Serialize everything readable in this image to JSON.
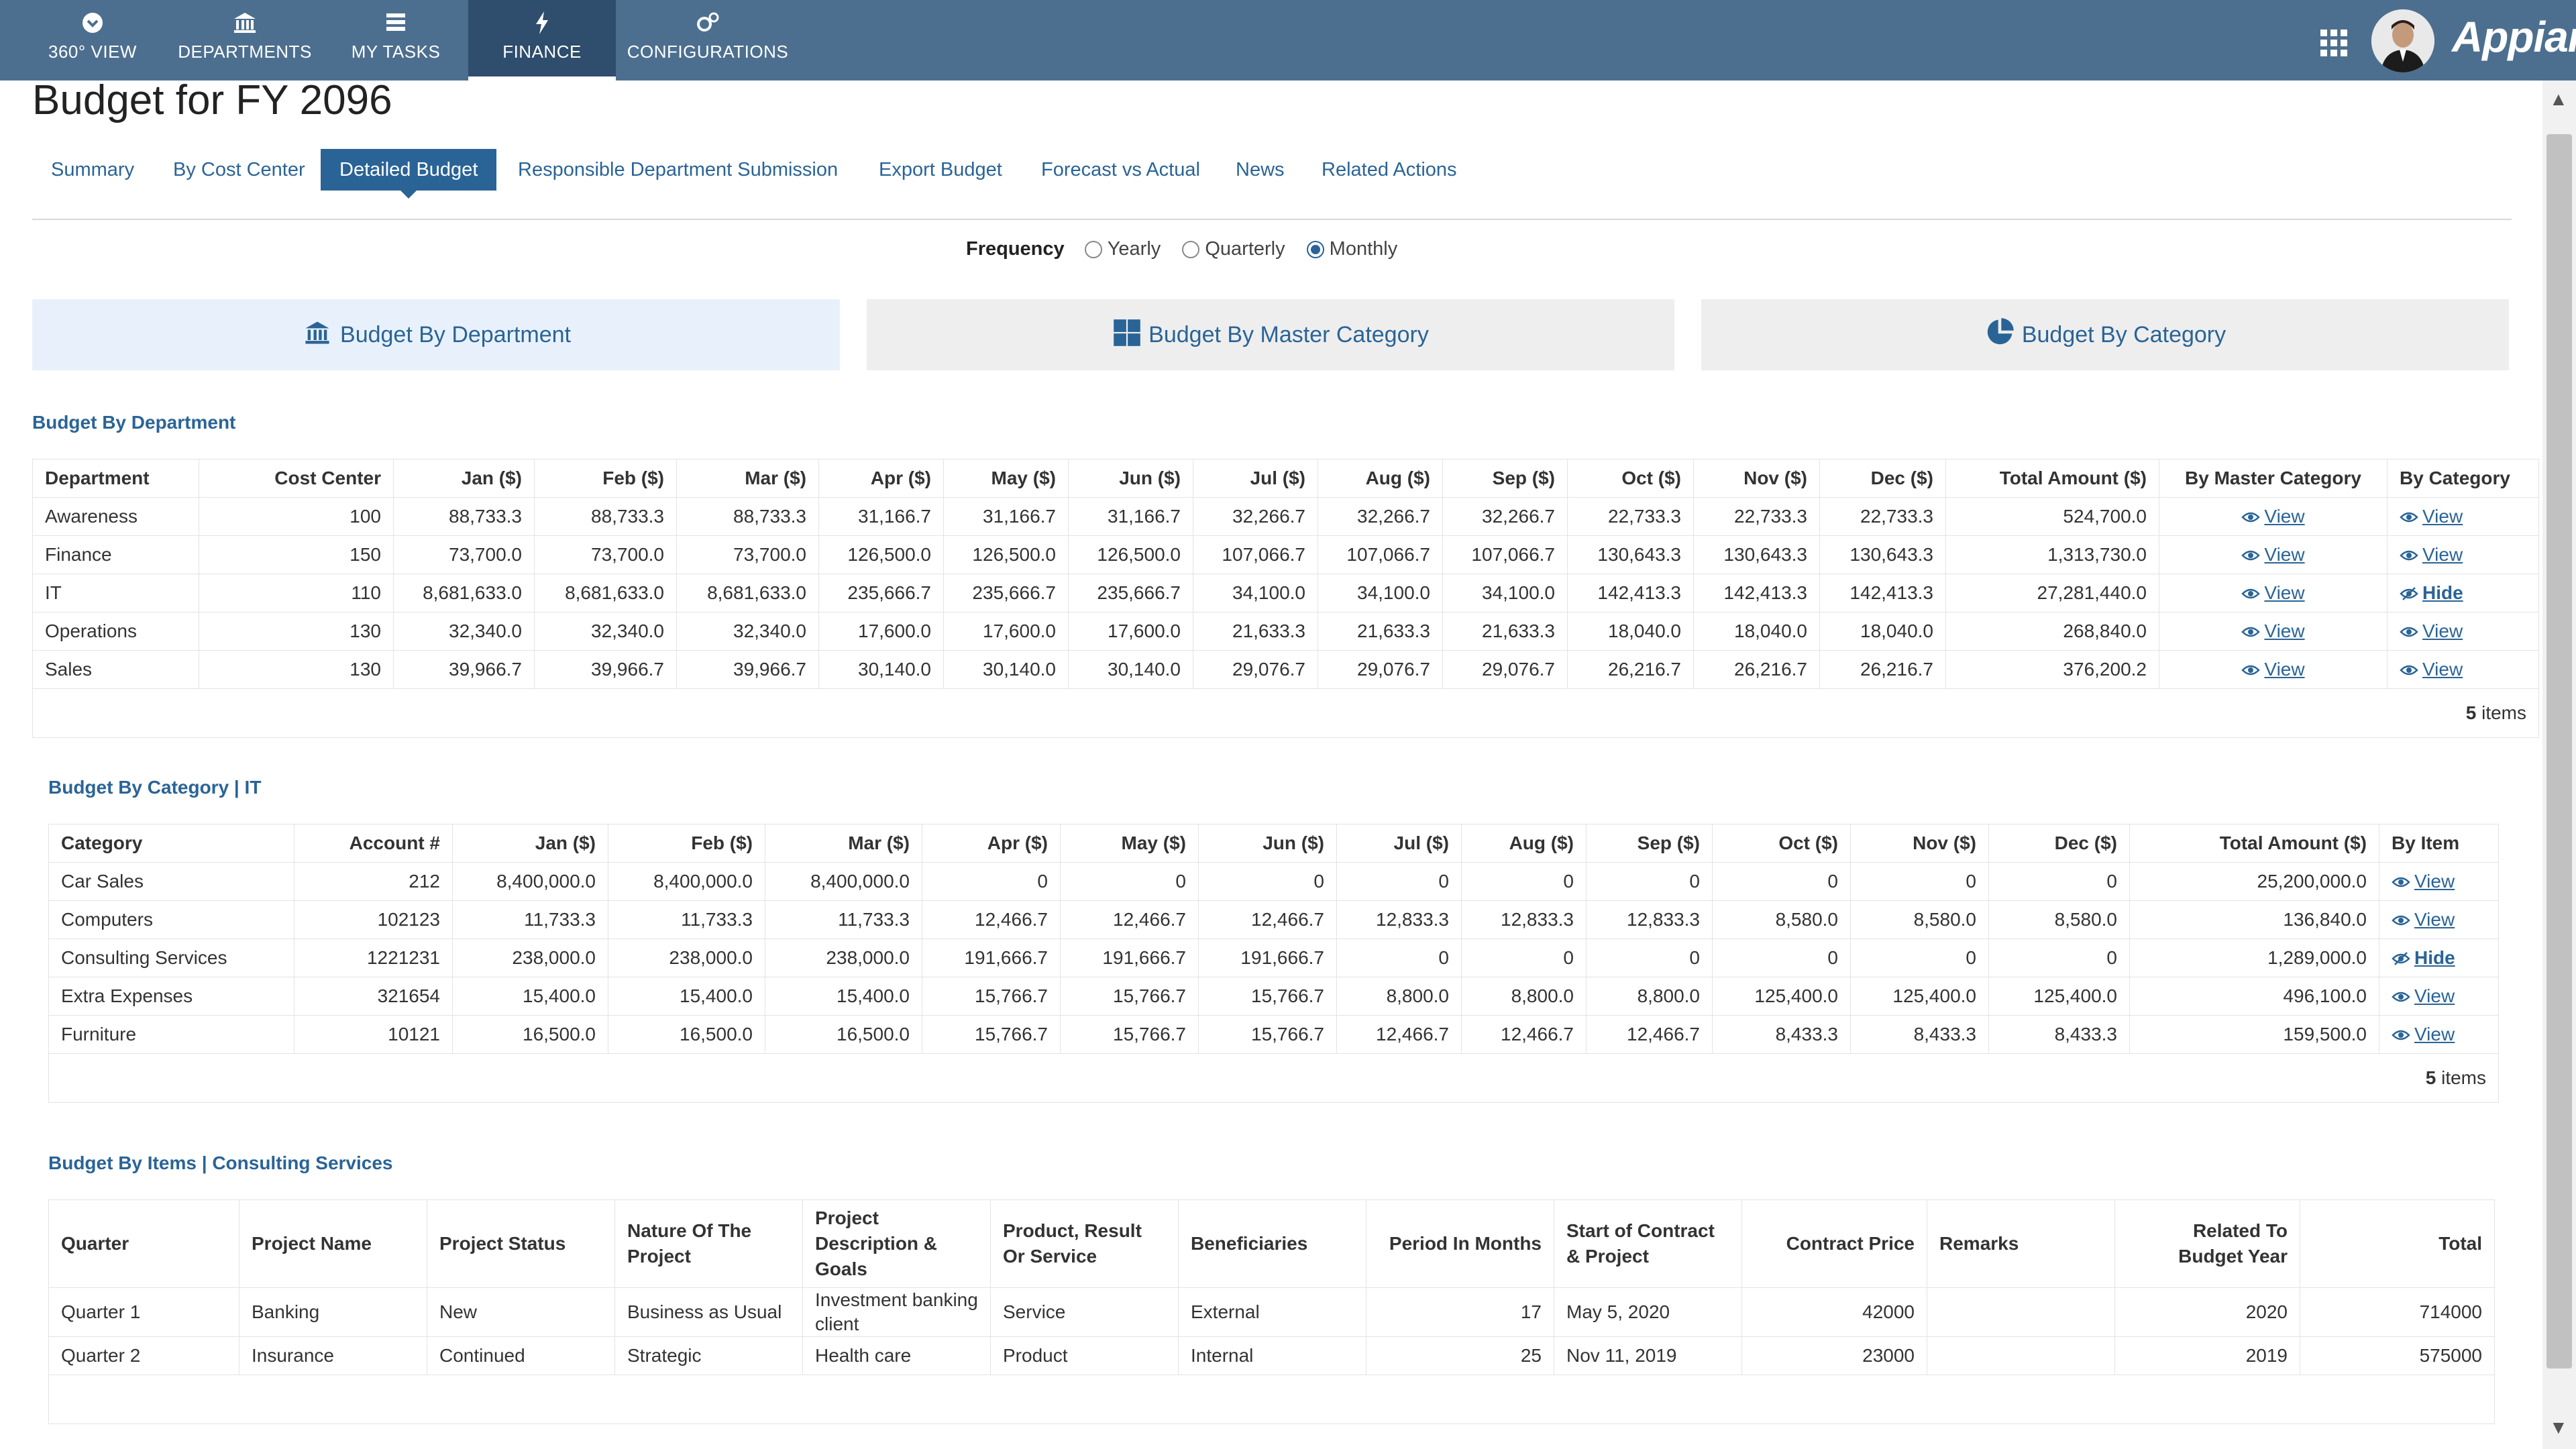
{
  "nav": {
    "items": [
      {
        "label": "360° VIEW",
        "icon": "chevron-circle-icon"
      },
      {
        "label": "DEPARTMENTS",
        "icon": "bank-icon"
      },
      {
        "label": "MY TASKS",
        "icon": "tasks-icon"
      },
      {
        "label": "FINANCE",
        "icon": "bolt-icon",
        "active": true
      },
      {
        "label": "CONFIGURATIONS",
        "icon": "gears-icon"
      }
    ],
    "brand": "Appian"
  },
  "page": {
    "title": "Budget for FY 2096"
  },
  "tabs": [
    "Summary",
    "By Cost Center",
    "Detailed Budget",
    "Responsible Department Submission",
    "Export Budget",
    "Forecast vs Actual",
    "News",
    "Related Actions"
  ],
  "active_tab": "Detailed Budget",
  "frequency": {
    "label": "Frequency",
    "options": [
      "Yearly",
      "Quarterly",
      "Monthly"
    ],
    "selected": "Monthly"
  },
  "cards": [
    "Budget By Department",
    "Budget By Master Category",
    "Budget By Category"
  ],
  "dept_section": {
    "title": "Budget By Department",
    "headers": [
      "Department",
      "Cost Center",
      "Jan ($)",
      "Feb ($)",
      "Mar ($)",
      "Apr ($)",
      "May ($)",
      "Jun ($)",
      "Jul ($)",
      "Aug ($)",
      "Sep ($)",
      "Oct ($)",
      "Nov ($)",
      "Dec ($)",
      "Total Amount ($)",
      "By Master Category",
      "By Category"
    ],
    "rows": [
      [
        "Awareness",
        "100",
        "88,733.3",
        "88,733.3",
        "88,733.3",
        "31,166.7",
        "31,166.7",
        "31,166.7",
        "32,266.7",
        "32,266.7",
        "32,266.7",
        "22,733.3",
        "22,733.3",
        "22,733.3",
        "524,700.0",
        "View",
        "View"
      ],
      [
        "Finance",
        "150",
        "73,700.0",
        "73,700.0",
        "73,700.0",
        "126,500.0",
        "126,500.0",
        "126,500.0",
        "107,066.7",
        "107,066.7",
        "107,066.7",
        "130,643.3",
        "130,643.3",
        "130,643.3",
        "1,313,730.0",
        "View",
        "View"
      ],
      [
        "IT",
        "110",
        "8,681,633.0",
        "8,681,633.0",
        "8,681,633.0",
        "235,666.7",
        "235,666.7",
        "235,666.7",
        "34,100.0",
        "34,100.0",
        "34,100.0",
        "142,413.3",
        "142,413.3",
        "142,413.3",
        "27,281,440.0",
        "View",
        "Hide"
      ],
      [
        "Operations",
        "130",
        "32,340.0",
        "32,340.0",
        "32,340.0",
        "17,600.0",
        "17,600.0",
        "17,600.0",
        "21,633.3",
        "21,633.3",
        "21,633.3",
        "18,040.0",
        "18,040.0",
        "18,040.0",
        "268,840.0",
        "View",
        "View"
      ],
      [
        "Sales",
        "130",
        "39,966.7",
        "39,966.7",
        "39,966.7",
        "30,140.0",
        "30,140.0",
        "30,140.0",
        "29,076.7",
        "29,076.7",
        "29,076.7",
        "26,216.7",
        "26,216.7",
        "26,216.7",
        "376,200.2",
        "View",
        "View"
      ]
    ],
    "count": "5",
    "count_label": "items"
  },
  "cat_section": {
    "title": "Budget By Category | IT",
    "headers": [
      "Category",
      "Account #",
      "Jan ($)",
      "Feb ($)",
      "Mar ($)",
      "Apr ($)",
      "May ($)",
      "Jun ($)",
      "Jul ($)",
      "Aug ($)",
      "Sep ($)",
      "Oct ($)",
      "Nov ($)",
      "Dec ($)",
      "Total Amount ($)",
      "By Item"
    ],
    "rows": [
      [
        "Car Sales",
        "212",
        "8,400,000.0",
        "8,400,000.0",
        "8,400,000.0",
        "0",
        "0",
        "0",
        "0",
        "0",
        "0",
        "0",
        "0",
        "0",
        "25,200,000.0",
        "View"
      ],
      [
        "Computers",
        "102123",
        "11,733.3",
        "11,733.3",
        "11,733.3",
        "12,466.7",
        "12,466.7",
        "12,466.7",
        "12,833.3",
        "12,833.3",
        "12,833.3",
        "8,580.0",
        "8,580.0",
        "8,580.0",
        "136,840.0",
        "View"
      ],
      [
        "Consulting Services",
        "1221231",
        "238,000.0",
        "238,000.0",
        "238,000.0",
        "191,666.7",
        "191,666.7",
        "191,666.7",
        "0",
        "0",
        "0",
        "0",
        "0",
        "0",
        "1,289,000.0",
        "Hide"
      ],
      [
        "Extra Expenses",
        "321654",
        "15,400.0",
        "15,400.0",
        "15,400.0",
        "15,766.7",
        "15,766.7",
        "15,766.7",
        "8,800.0",
        "8,800.0",
        "8,800.0",
        "125,400.0",
        "125,400.0",
        "125,400.0",
        "496,100.0",
        "View"
      ],
      [
        "Furniture",
        "10121",
        "16,500.0",
        "16,500.0",
        "16,500.0",
        "15,766.7",
        "15,766.7",
        "15,766.7",
        "12,466.7",
        "12,466.7",
        "12,466.7",
        "8,433.3",
        "8,433.3",
        "8,433.3",
        "159,500.0",
        "View"
      ]
    ],
    "count": "5",
    "count_label": "items"
  },
  "items_section": {
    "title": "Budget By Items | Consulting Services",
    "headers": [
      "Quarter",
      "Project Name",
      "Project Status",
      "Nature Of The Project",
      "Project Description & Goals",
      "Product, Result Or Service",
      "Beneficiaries",
      "Period In Months",
      "Start of Contract & Project",
      "Contract Price",
      "Remarks",
      "Related To Budget Year",
      "Total"
    ],
    "rows": [
      [
        "Quarter 1",
        "Banking",
        "New",
        "Business as Usual",
        "Investment banking client",
        "Service",
        "External",
        "17",
        "May 5, 2020",
        "42000",
        "",
        "2020",
        "714000"
      ],
      [
        "Quarter 2",
        "Insurance",
        "Continued",
        "Strategic",
        "Health care",
        "Product",
        "Internal",
        "25",
        "Nov 11, 2019",
        "23000",
        "",
        "2019",
        "575000"
      ]
    ]
  },
  "colors": {
    "nav_bg": "#4d6f8f",
    "nav_active": "#2f4d6c",
    "accent": "#2a6496"
  }
}
